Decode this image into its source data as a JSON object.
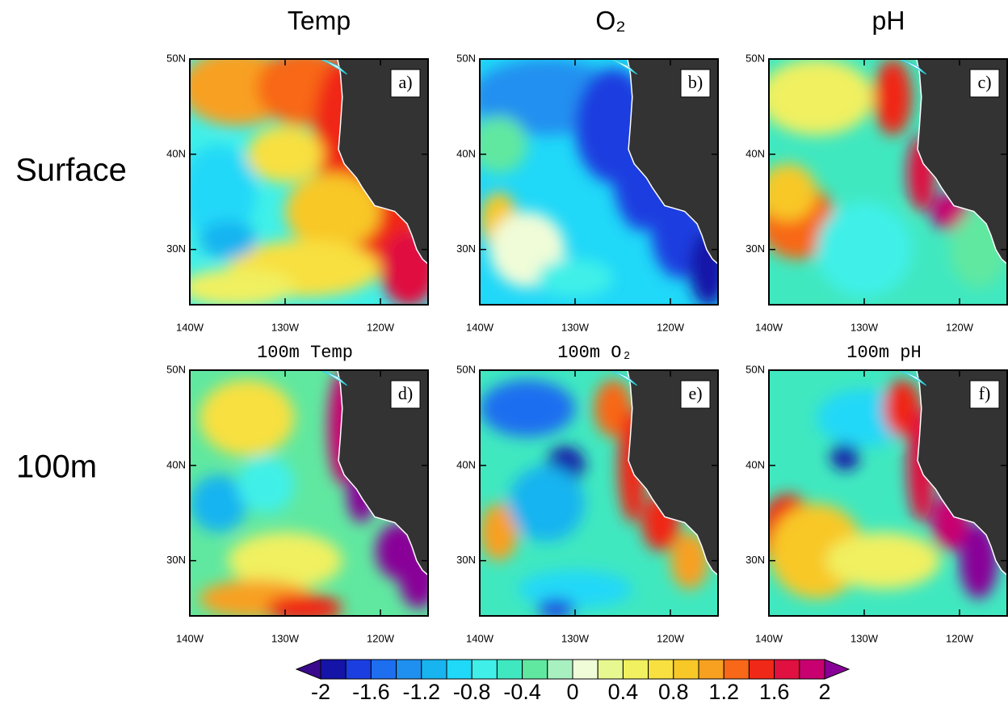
{
  "columns": [
    "Temp",
    "O₂",
    "pH"
  ],
  "rows": [
    "Surface",
    "100m"
  ],
  "panels": [
    {
      "label": "a)"
    },
    {
      "label": "b)"
    },
    {
      "label": "c)"
    },
    {
      "title": "100m Temp",
      "label": "d)"
    },
    {
      "title": "100m O₂",
      "label": "e)"
    },
    {
      "title": "100m pH",
      "label": "f)"
    }
  ],
  "axes": {
    "lonlim": [
      -140,
      -115
    ],
    "latlim": [
      24.2,
      50
    ],
    "lon_ticks": [
      {
        "value": -140,
        "label": "140W"
      },
      {
        "value": -130,
        "label": "130W"
      },
      {
        "value": -120,
        "label": "120W"
      }
    ],
    "lat_ticks": [
      {
        "value": 50,
        "label": "50N"
      },
      {
        "value": 40,
        "label": "40N"
      },
      {
        "value": 30,
        "label": "30N"
      }
    ]
  },
  "colorbar": {
    "lim": [
      -2,
      2
    ],
    "ticks": [
      -2,
      -1.6,
      -1.2,
      -0.8,
      -0.4,
      0,
      0.4,
      0.8,
      1.2,
      1.6,
      2
    ],
    "colors": [
      "#3a0a8c",
      "#1414a8",
      "#1a3ee0",
      "#1e6ef0",
      "#2090f0",
      "#18b4f0",
      "#20d8f8",
      "#40f0e8",
      "#40e8c0",
      "#60e8a0",
      "#a8f0c0",
      "#f0fcd8",
      "#e8f890",
      "#f0f060",
      "#f8e040",
      "#f8c828",
      "#f8a020",
      "#f86818",
      "#f02818",
      "#e01040",
      "#c80070",
      "#880098"
    ]
  }
}
